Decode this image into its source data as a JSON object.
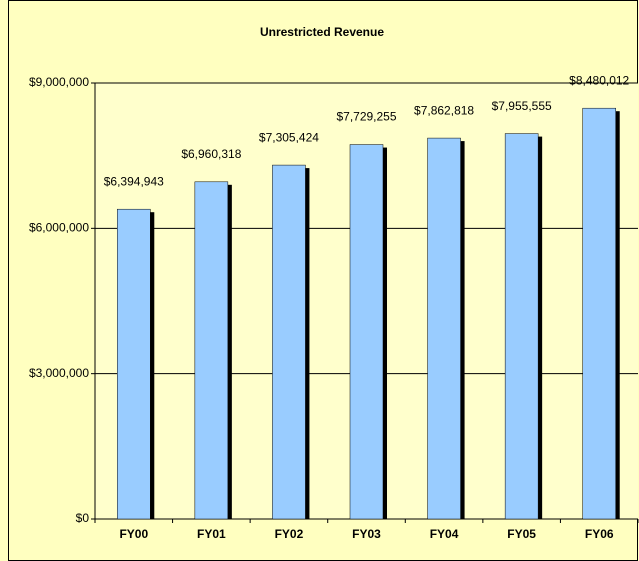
{
  "chart_data": {
    "type": "bar",
    "title": "Unrestricted Revenue",
    "categories": [
      "FY00",
      "FY01",
      "FY02",
      "FY03",
      "FY04",
      "FY05",
      "FY06"
    ],
    "values": [
      6394943,
      6960318,
      7305424,
      7729255,
      7862818,
      7955555,
      8480012
    ],
    "value_labels": [
      "$6,394,943",
      "$6,960,318",
      "$7,305,424",
      "$7,729,255",
      "$7,862,818",
      "$7,955,555",
      "$8,480,012"
    ],
    "color": "#99ccff",
    "ylim": [
      0,
      9000000
    ],
    "yticks": [
      {
        "value": 0,
        "label": "$0"
      },
      {
        "value": 3000000,
        "label": "$3,000,000"
      },
      {
        "value": 6000000,
        "label": "$6,000,000"
      },
      {
        "value": 9000000,
        "label": "$9,000,000"
      }
    ],
    "grid": true
  }
}
